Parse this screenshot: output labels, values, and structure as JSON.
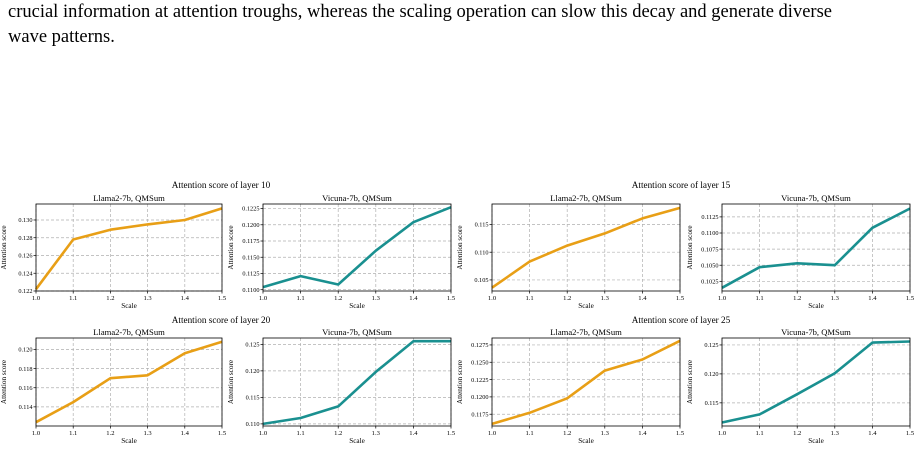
{
  "caption": {
    "line1": "crucial information at attention troughs, whereas the scaling operation can slow this decay and generate diverse",
    "line2": "wave patterns."
  },
  "colors": {
    "llama": "#E89F16",
    "vicuna": "#1A9090",
    "grid": "#b0b0b0"
  },
  "groups": [
    {
      "title": "Attention score of layer 10"
    },
    {
      "title": "Attention score of layer 15"
    },
    {
      "title": "Attention score of layer 20"
    },
    {
      "title": "Attention score of layer 25"
    }
  ],
  "chart_data": [
    {
      "type": "line",
      "group": 0,
      "title": "Llama2-7b, QMSum",
      "xlabel": "Scale",
      "ylabel": "Attention score",
      "x": [
        1.0,
        1.1,
        1.2,
        1.3,
        1.4,
        1.5
      ],
      "xticks": [
        "1.0",
        "1.1",
        "1.2",
        "1.3",
        "1.4",
        "1.5"
      ],
      "series": [
        {
          "values": [
            0.1222,
            0.1278,
            0.1289,
            0.1295,
            0.13,
            0.1313
          ],
          "color": "#E89F16"
        }
      ],
      "ylim": [
        0.122,
        0.1318
      ],
      "yticks": [
        "0.122",
        "0.124",
        "0.126",
        "0.128",
        "0.130"
      ],
      "ytick_values": [
        0.122,
        0.124,
        0.126,
        0.128,
        0.13
      ],
      "grid": true
    },
    {
      "type": "line",
      "group": 0,
      "title": "Vicuna-7b, QMSum",
      "xlabel": "Scale",
      "ylabel": "Attention score",
      "x": [
        1.0,
        1.1,
        1.2,
        1.3,
        1.4,
        1.5
      ],
      "xticks": [
        "1.0",
        "1.1",
        "1.2",
        "1.3",
        "1.4",
        "1.5"
      ],
      "series": [
        {
          "values": [
            0.1104,
            0.1121,
            0.1108,
            0.116,
            0.1204,
            0.1227
          ],
          "color": "#1A9090"
        }
      ],
      "ylim": [
        0.1098,
        0.1232
      ],
      "yticks": [
        "0.1100",
        "0.1125",
        "0.1150",
        "0.1175",
        "0.1200",
        "0.1225"
      ],
      "ytick_values": [
        0.11,
        0.1125,
        0.115,
        0.1175,
        0.12,
        0.1225
      ],
      "grid": true
    },
    {
      "type": "line",
      "group": 1,
      "title": "Llama2-7b, QMSum",
      "xlabel": "Scale",
      "ylabel": "Attention score",
      "x": [
        1.0,
        1.1,
        1.2,
        1.3,
        1.4,
        1.5
      ],
      "xticks": [
        "1.0",
        "1.1",
        "1.2",
        "1.3",
        "1.4",
        "1.5"
      ],
      "series": [
        {
          "values": [
            0.1036,
            0.1083,
            0.1112,
            0.1134,
            0.1161,
            0.118
          ],
          "color": "#E89F16"
        }
      ],
      "ylim": [
        0.103,
        0.1187
      ],
      "yticks": [
        "0.105",
        "0.110",
        "0.115"
      ],
      "ytick_values": [
        0.105,
        0.11,
        0.115
      ],
      "grid": true
    },
    {
      "type": "line",
      "group": 1,
      "title": "Vicuna-7b, QMSum",
      "xlabel": "Scale",
      "ylabel": "Attention score",
      "x": [
        1.0,
        1.1,
        1.2,
        1.3,
        1.4,
        1.5
      ],
      "xticks": [
        "1.0",
        "1.1",
        "1.2",
        "1.3",
        "1.4",
        "1.5"
      ],
      "series": [
        {
          "values": [
            0.1015,
            0.1047,
            0.1053,
            0.105,
            0.1108,
            0.1138
          ],
          "color": "#1A9090"
        }
      ],
      "ylim": [
        0.101,
        0.1145
      ],
      "yticks": [
        "0.1025",
        "0.1050",
        "0.1075",
        "0.1100",
        "0.1125"
      ],
      "ytick_values": [
        0.1025,
        0.105,
        0.1075,
        0.11,
        0.1125
      ],
      "grid": true
    },
    {
      "type": "line",
      "group": 2,
      "title": "Llama2-7b, QMSum",
      "xlabel": "Scale",
      "ylabel": "Attention score",
      "x": [
        1.0,
        1.1,
        1.2,
        1.3,
        1.4,
        1.5
      ],
      "xticks": [
        "1.0",
        "1.1",
        "1.2",
        "1.3",
        "1.4",
        "1.5"
      ],
      "series": [
        {
          "values": [
            0.1124,
            0.1145,
            0.117,
            0.1173,
            0.1196,
            0.1208
          ],
          "color": "#E89F16"
        }
      ],
      "ylim": [
        0.112,
        0.1212
      ],
      "yticks": [
        "0.114",
        "0.116",
        "0.118",
        "0.120"
      ],
      "ytick_values": [
        0.114,
        0.116,
        0.118,
        0.12
      ],
      "grid": true
    },
    {
      "type": "line",
      "group": 2,
      "title": "Vicuna-7b, QMSum",
      "xlabel": "Scale",
      "ylabel": "Attention score",
      "x": [
        1.0,
        1.1,
        1.2,
        1.3,
        1.4,
        1.5
      ],
      "xticks": [
        "1.0",
        "1.1",
        "1.2",
        "1.3",
        "1.4",
        "1.5"
      ],
      "series": [
        {
          "values": [
            0.11,
            0.1111,
            0.1133,
            0.1198,
            0.1256,
            0.1256
          ],
          "color": "#1A9090"
        }
      ],
      "ylim": [
        0.1096,
        0.1262
      ],
      "yticks": [
        "0.110",
        "0.115",
        "0.120",
        "0.125"
      ],
      "ytick_values": [
        0.11,
        0.115,
        0.12,
        0.125
      ],
      "grid": true
    },
    {
      "type": "line",
      "group": 3,
      "title": "Llama2-7b, QMSum",
      "xlabel": "Scale",
      "ylabel": "Attention score",
      "x": [
        1.0,
        1.1,
        1.2,
        1.3,
        1.4,
        1.5
      ],
      "xticks": [
        "1.0",
        "1.1",
        "1.2",
        "1.3",
        "1.4",
        "1.5"
      ],
      "series": [
        {
          "values": [
            0.1161,
            0.1177,
            0.1198,
            0.1238,
            0.1254,
            0.1281
          ],
          "color": "#E89F16"
        }
      ],
      "ylim": [
        0.1158,
        0.1285
      ],
      "yticks": [
        "0.1175",
        "0.1200",
        "0.1225",
        "0.1250",
        "0.1275"
      ],
      "ytick_values": [
        0.1175,
        0.12,
        0.1225,
        0.125,
        0.1275
      ],
      "grid": true
    },
    {
      "type": "line",
      "group": 3,
      "title": "Vicuna-7b, QMSum",
      "xlabel": "Scale",
      "ylabel": "Attention score",
      "x": [
        1.0,
        1.1,
        1.2,
        1.3,
        1.4,
        1.5
      ],
      "xticks": [
        "1.0",
        "1.1",
        "1.2",
        "1.3",
        "1.4",
        "1.5"
      ],
      "series": [
        {
          "values": [
            0.1116,
            0.113,
            0.1165,
            0.1201,
            0.1254,
            0.1256
          ],
          "color": "#1A9090"
        }
      ],
      "ylim": [
        0.111,
        0.1262
      ],
      "yticks": [
        "0.115",
        "0.120",
        "0.125"
      ],
      "ytick_values": [
        0.115,
        0.12,
        0.125
      ],
      "grid": true
    }
  ]
}
